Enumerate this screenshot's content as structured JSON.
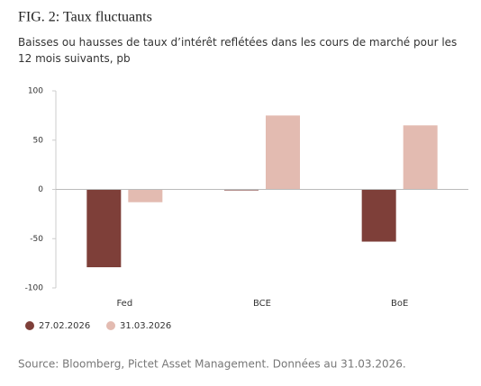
{
  "chart_data": {
    "type": "bar",
    "title": "FIG. 2: Taux fluctuants",
    "subtitle": "Baisses ou hausses de taux d’intérêt reflétées dans les cours de marché pour les 12 mois suivants, pb",
    "categories": [
      "Fed",
      "BCE",
      "BoE"
    ],
    "series": [
      {
        "name": "27.02.2026",
        "color": "#7e3f39",
        "values": [
          -79,
          -1,
          -53
        ]
      },
      {
        "name": "31.03.2026",
        "color": "#e3bbb1",
        "values": [
          -13,
          75,
          65
        ]
      }
    ],
    "ylim": [
      -100,
      100
    ],
    "yticks": [
      -100,
      -50,
      0,
      50,
      100
    ],
    "source": "Source: Bloomberg, Pictet Asset Management. Données au 31.03.2026."
  }
}
